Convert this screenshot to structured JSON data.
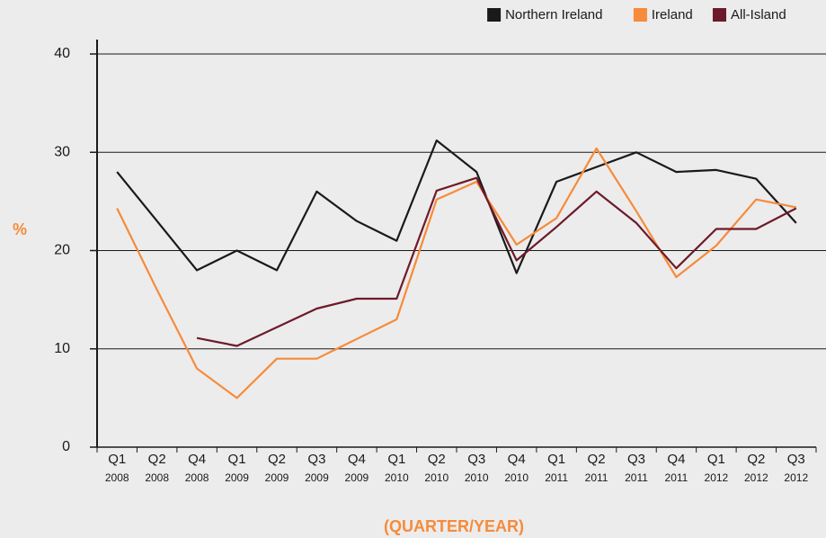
{
  "chart_data": {
    "type": "line",
    "ylabel": "%",
    "xlabel": "(QUARTER/YEAR)",
    "categories": [
      "Q1",
      "Q2",
      "Q4",
      "Q1",
      "Q2",
      "Q3",
      "Q4",
      "Q1",
      "Q2",
      "Q3",
      "Q4",
      "Q1",
      "Q2",
      "Q3",
      "Q4",
      "Q1",
      "Q2",
      "Q3"
    ],
    "category_years": [
      "2008",
      "2008",
      "2008",
      "2009",
      "2009",
      "2009",
      "2009",
      "2010",
      "2010",
      "2010",
      "2010",
      "2011",
      "2011",
      "2011",
      "2011",
      "2012",
      "2012",
      "2012"
    ],
    "series": [
      {
        "name": "Northern Ireland",
        "color": "#1a1a1a",
        "values": [
          28,
          23,
          18,
          20,
          18,
          26,
          23,
          21,
          31.2,
          28,
          17.7,
          27,
          28.5,
          30,
          28,
          28.2,
          27.3,
          22.8
        ]
      },
      {
        "name": "Ireland",
        "color": "#f68b3a",
        "values": [
          24.3,
          16,
          8,
          5,
          9,
          9,
          11,
          13,
          25.2,
          27,
          20.6,
          23.3,
          30.4,
          24,
          17.3,
          20.5,
          25.2,
          24.4
        ]
      },
      {
        "name": "All-Island",
        "color": "#6d1a2a",
        "values": [
          null,
          null,
          11.1,
          10.3,
          12.2,
          14.1,
          15.1,
          15.1,
          26.1,
          27.4,
          19,
          22.4,
          26,
          22.8,
          18.2,
          22.2,
          22.2,
          24.3
        ]
      }
    ],
    "ylim": [
      0,
      40
    ],
    "yticks": [
      0,
      10,
      20,
      30,
      40
    ],
    "grid": true,
    "legend": "top-right"
  }
}
